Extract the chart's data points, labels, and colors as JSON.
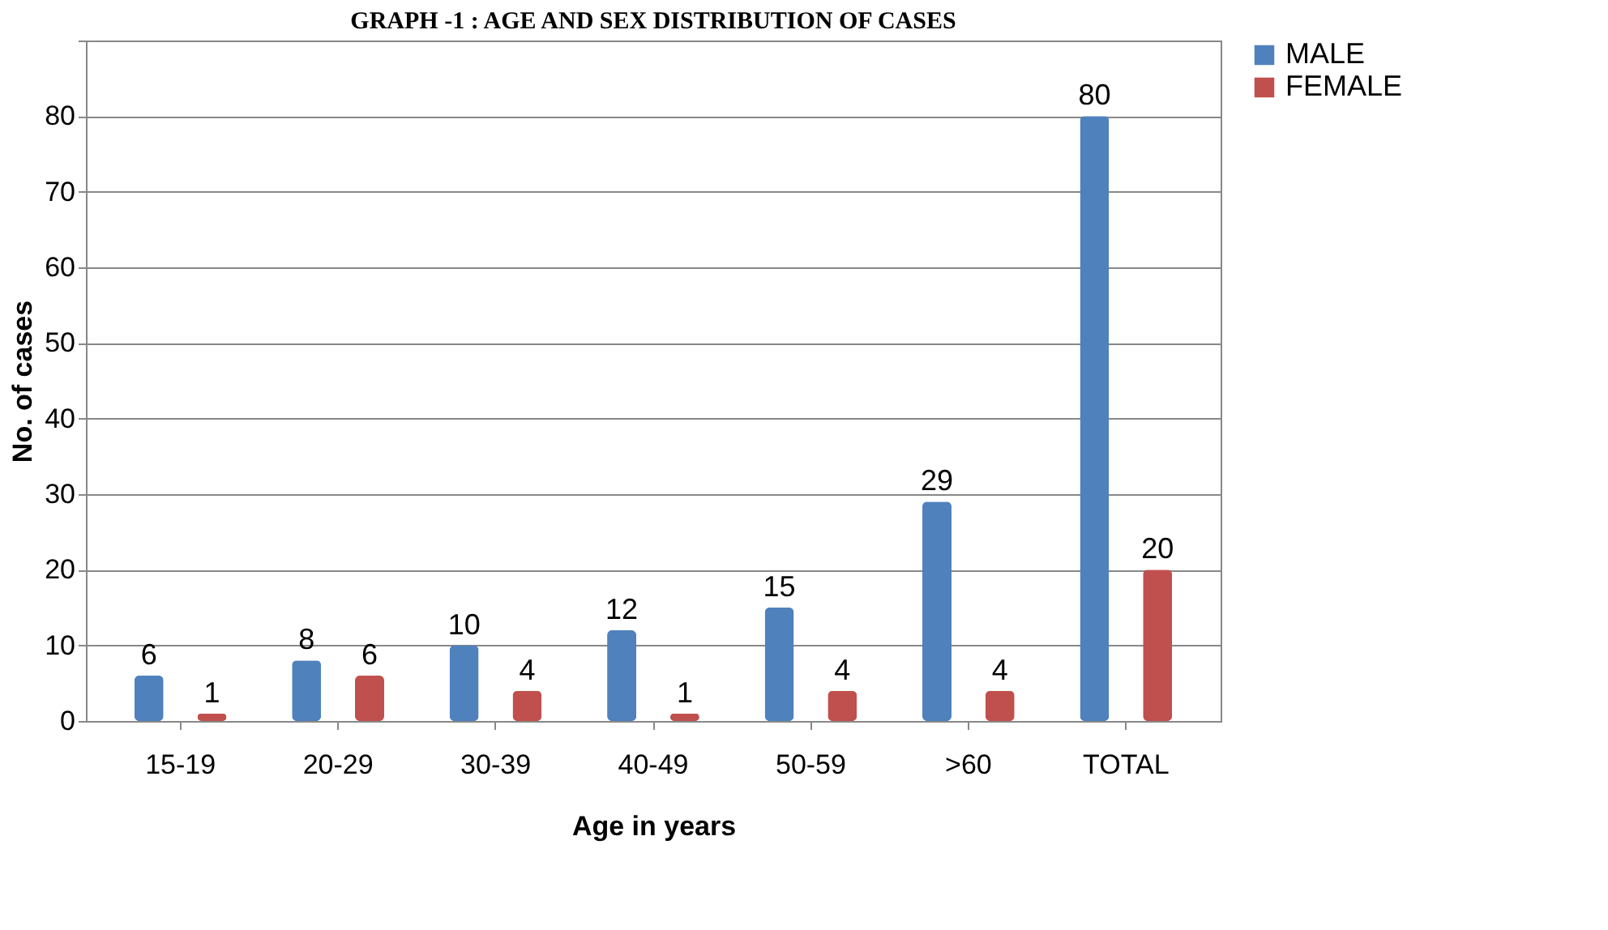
{
  "chart_data": {
    "type": "bar",
    "title": "GRAPH -1 : AGE AND SEX DISTRIBUTION OF CASES",
    "xlabel": "Age in years",
    "ylabel": "No. of cases",
    "categories": [
      "15-19",
      "20-29",
      "30-39",
      "40-49",
      "50-59",
      ">60",
      "TOTAL"
    ],
    "series": [
      {
        "name": "MALE",
        "color": "#4f81bd",
        "values": [
          6,
          8,
          10,
          12,
          15,
          29,
          80
        ]
      },
      {
        "name": "FEMALE",
        "color": "#c0504d",
        "values": [
          1,
          6,
          4,
          1,
          4,
          4,
          20
        ]
      }
    ],
    "ylim": [
      0,
      90
    ],
    "yticks": [
      0,
      10,
      20,
      30,
      40,
      50,
      60,
      70,
      80,
      {
        "value": 90,
        "label": null
      }
    ],
    "grid": "y",
    "legend": "right",
    "data_labels": true
  }
}
